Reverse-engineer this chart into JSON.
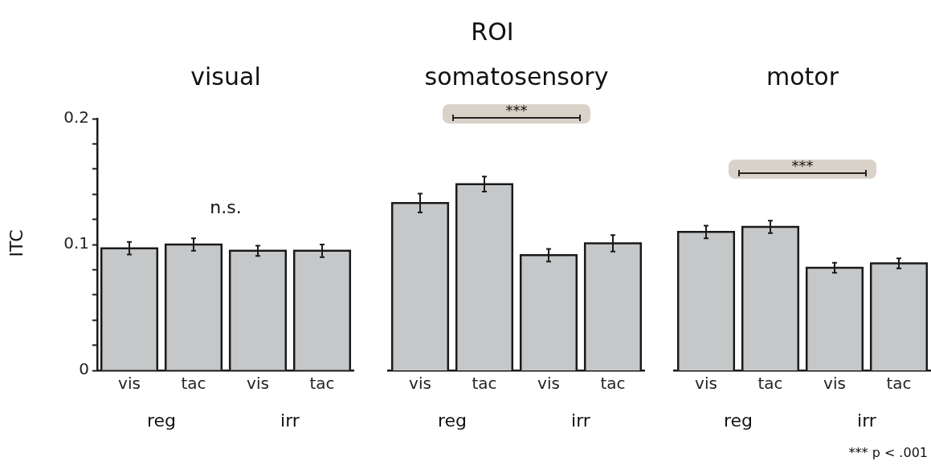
{
  "chart_data": [
    {
      "type": "bar",
      "title": "visual",
      "ylabel": "ITC",
      "categories": [
        "vis",
        "tac",
        "vis",
        "tac"
      ],
      "color": "#c5c7c9",
      "values": [
        0.097,
        0.1,
        0.095,
        0.095
      ],
      "errors": [
        0.005,
        0.005,
        0.004,
        0.005
      ],
      "ylim": [
        0,
        0.2
      ],
      "yticks": [
        0,
        {
          "value": 0.02,
          "label": null
        },
        {
          "value": 0.04,
          "label": null
        },
        {
          "value": 0.06,
          "label": null
        },
        {
          "value": 0.08,
          "label": null
        },
        0.1,
        {
          "value": 0.12,
          "label": null
        },
        {
          "value": 0.14,
          "label": null
        },
        {
          "value": 0.16,
          "label": null
        },
        {
          "value": 0.18,
          "label": null
        },
        0.2
      ],
      "grid": false,
      "legend": false,
      "annotations": [
        "n.s.",
        "reg",
        "irr"
      ]
    },
    {
      "type": "bar",
      "title": "ROI",
      "subtitle": "somatosensory",
      "categories": [
        "vis",
        "tac",
        "vis",
        "tac"
      ],
      "color": "#c5c7c9",
      "values": [
        0.133,
        0.148,
        0.0915,
        0.101
      ],
      "errors": [
        0.0075,
        0.006,
        0.005,
        0.0065
      ],
      "ylim": [
        0,
        0.2
      ],
      "tick_labels": "x",
      "grid": false,
      "legend": false,
      "annotations": [
        "***",
        "reg",
        "irr"
      ]
    },
    {
      "type": "bar",
      "title": "motor",
      "categories": [
        "vis",
        "tac",
        "vis",
        "tac"
      ],
      "color": "#c5c7c9",
      "values": [
        0.11,
        0.114,
        0.0815,
        0.085
      ],
      "errors": [
        0.005,
        0.005,
        0.004,
        0.004
      ],
      "ylim": [
        0,
        0.2
      ],
      "tick_labels": "x",
      "grid": false,
      "legend": false,
      "annotations": [
        "***",
        "reg",
        "irr",
        "*** p < .001"
      ]
    }
  ]
}
